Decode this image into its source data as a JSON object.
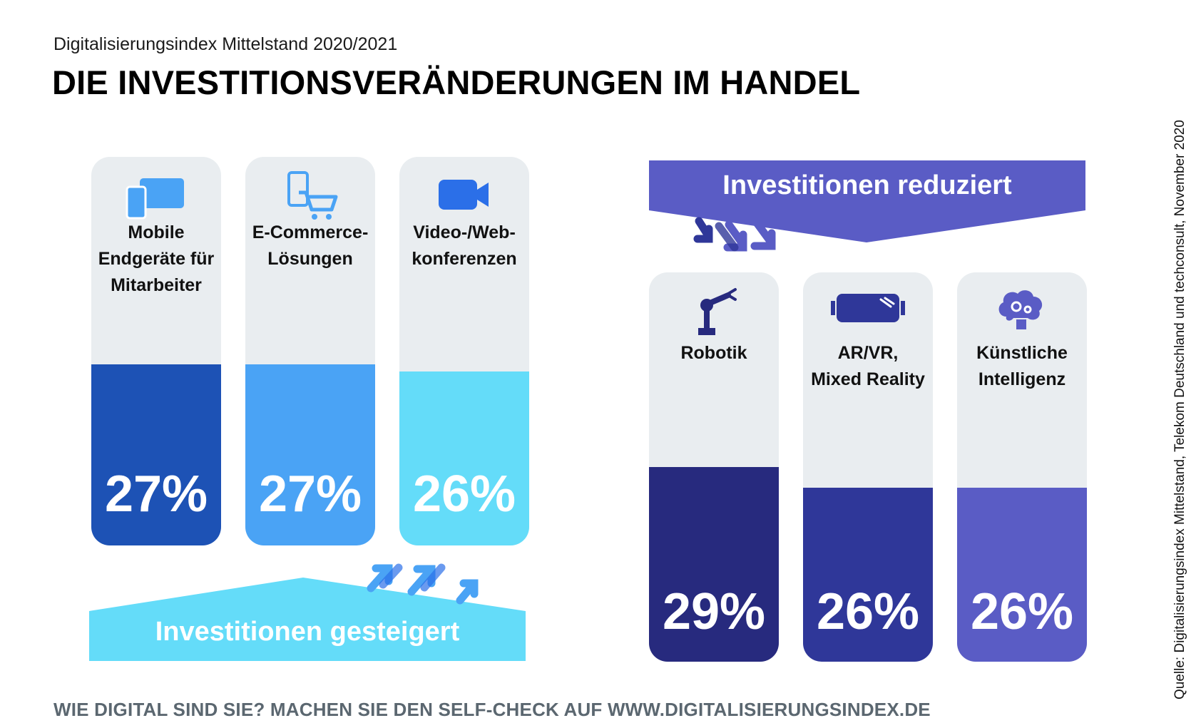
{
  "header": {
    "subtitle": "Digitalisierungsindex Mittelstand 2020/2021",
    "title": "DIE INVESTITIONSVERÄNDERUNGEN IM HANDEL"
  },
  "source": "Quelle: Digitalisierungsindex Mittelstand, Telekom Deutschland und techconsult, November 2020",
  "footer": "WIE DIGITAL SIND SIE? MACHEN SIE DEN SELF-CHECK AUF WWW.DIGITALISIERUNGSINDEX.DE",
  "banners": {
    "increased": "Investitionen gesteigert",
    "reduced": "Investitionen reduziert"
  },
  "chart_data": [
    {
      "type": "bar",
      "group": "Investitionen gesteigert",
      "categories": [
        "Mobile Endgeräte für Mitarbeiter",
        "E-Commerce-Lösungen",
        "Video-/Webkonferenzen"
      ],
      "labels": [
        "Mobile\nEndgeräte für\nMitarbeiter",
        "E-Commerce-\nLösungen",
        "Video-/Web-\nkonferenzen"
      ],
      "values": [
        27,
        27,
        26
      ],
      "value_labels": [
        "27%",
        "27%",
        "26%"
      ],
      "icons": [
        "mobile-devices-icon",
        "shopping-cart-icon",
        "video-camera-icon"
      ],
      "colors": [
        "#1d52b5",
        "#4aa3f5",
        "#64dcf9"
      ],
      "ylim": [
        0,
        100
      ]
    },
    {
      "type": "bar",
      "group": "Investitionen reduziert",
      "categories": [
        "Robotik",
        "AR/VR, Mixed Reality",
        "Künstliche Intelligenz"
      ],
      "labels": [
        "Robotik",
        "AR/VR,\nMixed Reality",
        "Künstliche\nIntelligenz"
      ],
      "values": [
        29,
        26,
        26
      ],
      "value_labels": [
        "29%",
        "26%",
        "26%"
      ],
      "icons": [
        "robot-arm-icon",
        "vr-headset-icon",
        "ai-brain-icon"
      ],
      "colors": [
        "#272a7e",
        "#2f3799",
        "#5a5cc5"
      ],
      "ylim": [
        0,
        100
      ]
    }
  ]
}
